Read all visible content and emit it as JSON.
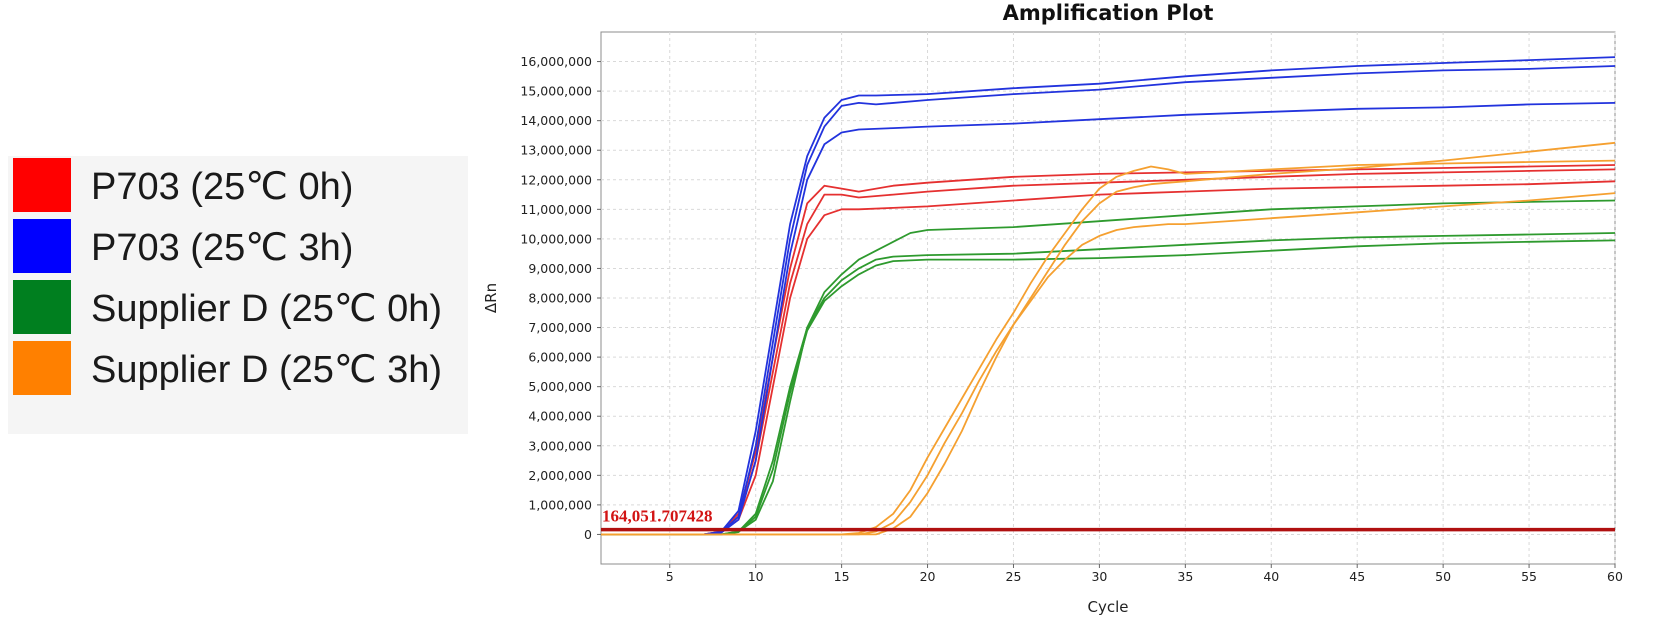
{
  "legend": {
    "items": [
      {
        "label": "P703 (25℃ 0h)",
        "color": "#ff0000"
      },
      {
        "label": "P703 (25℃ 3h)",
        "color": "#0000ff"
      },
      {
        "label": "Supplier D (25℃ 0h)",
        "color": "#007f1f"
      },
      {
        "label": "Supplier D (25℃ 3h)",
        "color": "#ff8000"
      }
    ]
  },
  "chart_data": {
    "type": "line",
    "title": "Amplification Plot",
    "xlabel": "Cycle",
    "ylabel": "ΔRn",
    "xlim": [
      1,
      60
    ],
    "ylim": [
      -1000000,
      17000000
    ],
    "xticks": [
      5,
      10,
      15,
      20,
      25,
      30,
      35,
      40,
      45,
      50,
      55,
      60
    ],
    "yticks": [
      0,
      1000000,
      2000000,
      3000000,
      4000000,
      5000000,
      6000000,
      7000000,
      8000000,
      9000000,
      10000000,
      11000000,
      12000000,
      13000000,
      14000000,
      15000000,
      16000000
    ],
    "ytick_labels": [
      "0",
      "1,000,000",
      "2,000,000",
      "3,000,000",
      "4,000,000",
      "5,000,000",
      "6,000,000",
      "7,000,000",
      "8,000,000",
      "9,000,000",
      "10,000,000",
      "11,000,000",
      "12,000,000",
      "13,000,000",
      "14,000,000",
      "15,000,000",
      "16,000,000"
    ],
    "grid": true,
    "threshold": {
      "value": 164051.707428,
      "label": "164,051.707428",
      "color": "#b01010"
    },
    "series": [
      {
        "group": "P703 (25℃ 0h)",
        "color": "#e53030",
        "x": [
          1,
          7,
          8,
          9,
          10,
          11,
          12,
          13,
          14,
          15,
          16,
          18,
          20,
          25,
          30,
          35,
          40,
          45,
          50,
          55,
          60
        ],
        "y": [
          0,
          0,
          100000,
          600000,
          2500000,
          5500000,
          8500000,
          10500000,
          11500000,
          11500000,
          11400000,
          11500000,
          11600000,
          11800000,
          11900000,
          12000000,
          12100000,
          12200000,
          12250000,
          12300000,
          12350000
        ]
      },
      {
        "group": "P703 (25℃ 0h)",
        "color": "#e53030",
        "x": [
          1,
          7,
          8,
          9,
          10,
          11,
          12,
          13,
          14,
          15,
          16,
          18,
          20,
          25,
          30,
          35,
          40,
          45,
          50,
          55,
          60
        ],
        "y": [
          0,
          0,
          80000,
          500000,
          2000000,
          5000000,
          8000000,
          10000000,
          10800000,
          11000000,
          11000000,
          11050000,
          11100000,
          11300000,
          11500000,
          11600000,
          11700000,
          11750000,
          11800000,
          11850000,
          11950000
        ]
      },
      {
        "group": "P703 (25℃ 0h)",
        "color": "#e53030",
        "x": [
          1,
          7,
          8,
          9,
          10,
          11,
          12,
          13,
          14,
          15,
          16,
          18,
          20,
          25,
          30,
          35,
          40,
          45,
          50,
          55,
          60
        ],
        "y": [
          0,
          0,
          100000,
          700000,
          2800000,
          6000000,
          9000000,
          11200000,
          11800000,
          11700000,
          11600000,
          11800000,
          11900000,
          12100000,
          12200000,
          12250000,
          12300000,
          12350000,
          12400000,
          12450000,
          12500000
        ]
      },
      {
        "group": "P703 (25℃ 3h)",
        "color": "#2233dd",
        "x": [
          1,
          7,
          8,
          9,
          10,
          11,
          12,
          13,
          14,
          15,
          16,
          17,
          20,
          25,
          30,
          35,
          40,
          45,
          50,
          55,
          60
        ],
        "y": [
          0,
          0,
          100000,
          800000,
          3500000,
          7000000,
          10500000,
          12800000,
          14100000,
          14700000,
          14850000,
          14850000,
          14900000,
          15100000,
          15250000,
          15500000,
          15700000,
          15850000,
          15950000,
          16050000,
          16150000
        ]
      },
      {
        "group": "P703 (25℃ 3h)",
        "color": "#2233dd",
        "x": [
          1,
          7,
          8,
          9,
          10,
          11,
          12,
          13,
          14,
          15,
          16,
          17,
          20,
          25,
          30,
          35,
          40,
          45,
          50,
          55,
          60
        ],
        "y": [
          0,
          0,
          80000,
          600000,
          3000000,
          6500000,
          10000000,
          12500000,
          13800000,
          14500000,
          14600000,
          14550000,
          14700000,
          14900000,
          15050000,
          15300000,
          15450000,
          15600000,
          15700000,
          15750000,
          15850000
        ]
      },
      {
        "group": "P703 (25℃ 3h)",
        "color": "#2233dd",
        "x": [
          1,
          7,
          8,
          9,
          10,
          11,
          12,
          13,
          14,
          15,
          16,
          18,
          20,
          25,
          30,
          35,
          40,
          45,
          50,
          55,
          60
        ],
        "y": [
          0,
          0,
          60000,
          500000,
          2500000,
          6000000,
          9500000,
          12000000,
          13200000,
          13600000,
          13700000,
          13750000,
          13800000,
          13900000,
          14050000,
          14200000,
          14300000,
          14400000,
          14450000,
          14550000,
          14600000
        ]
      },
      {
        "group": "Supplier D (25℃ 0h)",
        "color": "#2e9a2e",
        "x": [
          1,
          8,
          9,
          10,
          11,
          12,
          13,
          14,
          15,
          16,
          17,
          18,
          19,
          20,
          25,
          30,
          35,
          40,
          45,
          50,
          55,
          60
        ],
        "y": [
          0,
          0,
          100000,
          500000,
          1800000,
          4500000,
          7000000,
          8200000,
          8800000,
          9300000,
          9600000,
          9900000,
          10200000,
          10300000,
          10400000,
          10600000,
          10800000,
          11000000,
          11100000,
          11200000,
          11250000,
          11300000
        ]
      },
      {
        "group": "Supplier D (25℃ 0h)",
        "color": "#2e9a2e",
        "x": [
          1,
          8,
          9,
          10,
          11,
          12,
          13,
          14,
          15,
          16,
          17,
          18,
          20,
          25,
          30,
          35,
          40,
          45,
          50,
          55,
          60
        ],
        "y": [
          0,
          0,
          100000,
          700000,
          2500000,
          5000000,
          7000000,
          8000000,
          8600000,
          9000000,
          9300000,
          9400000,
          9450000,
          9500000,
          9650000,
          9800000,
          9950000,
          10050000,
          10100000,
          10150000,
          10200000
        ]
      },
      {
        "group": "Supplier D (25℃ 0h)",
        "color": "#2e9a2e",
        "x": [
          1,
          8,
          9,
          10,
          11,
          12,
          13,
          14,
          15,
          16,
          17,
          18,
          20,
          25,
          30,
          35,
          40,
          45,
          50,
          55,
          60
        ],
        "y": [
          0,
          0,
          80000,
          600000,
          2200000,
          4800000,
          6900000,
          7900000,
          8400000,
          8800000,
          9100000,
          9250000,
          9300000,
          9300000,
          9350000,
          9450000,
          9600000,
          9750000,
          9850000,
          9900000,
          9950000
        ]
      },
      {
        "group": "Supplier D (25℃ 3h)",
        "color": "#f5a030",
        "x": [
          1,
          15,
          16,
          17,
          18,
          19,
          20,
          21,
          22,
          23,
          24,
          25,
          26,
          27,
          28,
          29,
          30,
          31,
          32,
          33,
          34,
          35,
          40,
          45,
          50,
          55,
          60
        ],
        "y": [
          0,
          0,
          50000,
          250000,
          700000,
          1500000,
          2600000,
          3600000,
          4600000,
          5600000,
          6600000,
          7500000,
          8500000,
          9400000,
          10200000,
          11000000,
          11700000,
          12100000,
          12300000,
          12450000,
          12350000,
          12200000,
          12350000,
          12500000,
          12550000,
          12600000,
          12650000
        ]
      },
      {
        "group": "Supplier D (25℃ 3h)",
        "color": "#f5a030",
        "x": [
          1,
          16,
          17,
          18,
          19,
          20,
          21,
          22,
          23,
          24,
          25,
          26,
          27,
          28,
          29,
          30,
          31,
          32,
          33,
          34,
          35,
          40,
          45,
          50,
          55,
          60
        ],
        "y": [
          0,
          0,
          100000,
          400000,
          1100000,
          2000000,
          3100000,
          4100000,
          5200000,
          6200000,
          7100000,
          7900000,
          8700000,
          9300000,
          9800000,
          10100000,
          10300000,
          10400000,
          10450000,
          10500000,
          10500000,
          10700000,
          10900000,
          11100000,
          11300000,
          11550000
        ]
      },
      {
        "group": "Supplier D (25℃ 3h)",
        "color": "#f5a030",
        "x": [
          1,
          17,
          18,
          19,
          20,
          21,
          22,
          23,
          24,
          25,
          26,
          27,
          28,
          29,
          30,
          31,
          32,
          33,
          34,
          35,
          40,
          45,
          50,
          55,
          60
        ],
        "y": [
          0,
          0,
          200000,
          600000,
          1400000,
          2400000,
          3500000,
          4800000,
          6000000,
          7100000,
          8000000,
          8900000,
          9800000,
          10600000,
          11200000,
          11600000,
          11750000,
          11850000,
          11900000,
          11950000,
          12200000,
          12400000,
          12650000,
          12950000,
          13250000
        ]
      }
    ]
  }
}
